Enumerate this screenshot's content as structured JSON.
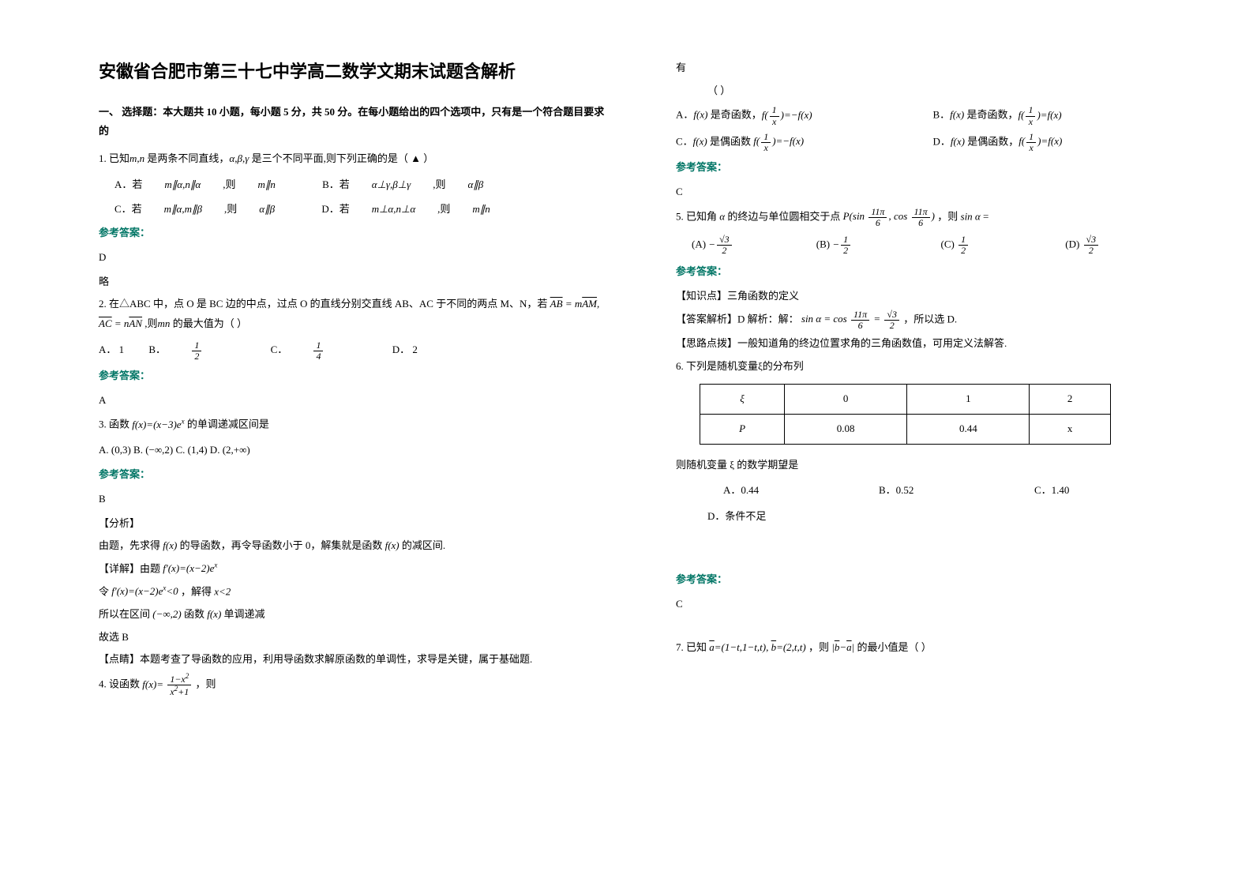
{
  "title": "安徽省合肥市第三十七中学高二数学文期末试题含解析",
  "section1": "一、 选择题：本大题共 10 小题，每小题 5 分，共 50 分。在每小题给出的四个选项中，只有是一个符合题目要求的",
  "answer_label": "参考答案：",
  "q1": {
    "stem_a": "1. 已知",
    "stem_b": " 是两条不同直线，",
    "stem_c": " 是三个不同平面,则下列正确的是（ ▲ ）",
    "optA_pre": "A．若",
    "optA_mid": " ,则",
    "optB_pre": "B．若",
    "optB_mid": " ,则",
    "optC_pre": "C．若",
    "optC_mid": " ,则",
    "optD_pre": "D．若",
    "optD_mid": " ,则",
    "ans": "D",
    "略": "略"
  },
  "q2": {
    "stem1": "2. 在△ABC 中，点 O 是 BC 边的中点，过点 O 的直线分别交直线 AB、AC 于不同的两点 M、N，若 ",
    "stem2": " ,则",
    "stem3": " 的最大值为（  ）",
    "optA": "A．  1",
    "optB": "B．",
    "optC": "C．",
    "optD": "D．  2",
    "ans": "A"
  },
  "q3": {
    "stem_a": "3. 函数",
    "stem_b": " 的单调递减区间是",
    "opts": "A. (0,3) B. (−∞,2)      C. (1,4) D. (2,+∞)",
    "ans": "B",
    "analysis_h": "【分析】",
    "l1a": "由题，先求得",
    "l1b": " 的导函数，再令导函数小于 0，解集就是函数",
    "l1c": " 的减区间.",
    "detail_h": "【详解】由题",
    "l2a": "令",
    "l2b": " ，解得",
    "l3a": "所以在区间",
    "l3b": " 函数",
    "l3c": " 单调递减",
    "l4": "故选 B",
    "pt": "【点睛】本题考查了导函数的应用，利用导函数求解原函数的单调性，求导是关键，属于基础题."
  },
  "q4": {
    "stem_a": "4. 设函数",
    "stem_b": " ，则"
  },
  "rightTop": "有",
  "rightParen": "（    ）",
  "q4opts": {
    "a1": "A．",
    "a2": " 是奇函数，",
    "b1": "B．",
    "b2": " 是奇函数，",
    "c1": "C．",
    "c2": " 是偶函数",
    "d1": "D．",
    "d2": " 是偶函数，",
    "ans": "C"
  },
  "q5": {
    "stem_a": "5. 已知角",
    "stem_b": " 的终边与单位圆相交于点",
    "stem_c": " ，则",
    "stem_d": " =",
    "optA": "(A)",
    "optB": "(B)",
    "optC": "(C)",
    "optD": "(D)",
    "kp": "【知识点】三角函数的定义",
    "expl_a": "【答案解析】D 解析：解：",
    "expl_b": " ，所以选 D.",
    "sl": "【思路点拨】一般知道角的终边位置求角的三角函数值，可用定义法解答."
  },
  "q6": {
    "stem": "6. 下列是随机变量ξ的分布列",
    "table": {
      "r1": [
        "ξ",
        "0",
        "1",
        "2"
      ],
      "r2": [
        "P",
        "0.08",
        "0.44",
        "x"
      ]
    },
    "sub": "则随机变量 ξ 的数学期望是",
    "optA": "A．0.44",
    "optB": "B．0.52",
    "optC": "C．1.40",
    "optD": "D．条件不足",
    "ans": "C"
  },
  "q7": {
    "stem_a": "7. 已知",
    "stem_b": " ，则",
    "stem_c": " 的最小值是（   ）"
  }
}
